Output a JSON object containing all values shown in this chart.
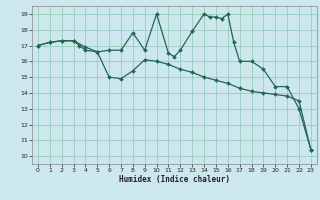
{
  "xlabel": "Humidex (Indice chaleur)",
  "bg_color": "#cce8ee",
  "grid_color": "#99ccbb",
  "line_color": "#226655",
  "xlim": [
    -0.5,
    23.5
  ],
  "ylim": [
    9.5,
    19.5
  ],
  "xticks": [
    0,
    1,
    2,
    3,
    4,
    5,
    6,
    7,
    8,
    9,
    10,
    11,
    12,
    13,
    14,
    15,
    16,
    17,
    18,
    19,
    20,
    21,
    22,
    23
  ],
  "yticks": [
    10,
    11,
    12,
    13,
    14,
    15,
    16,
    17,
    18,
    19
  ],
  "curve1_x": [
    0,
    1,
    2,
    3,
    3.5,
    4,
    5,
    6,
    7,
    8,
    9,
    10,
    11,
    11.5,
    12,
    13,
    14,
    14.5,
    15,
    15.5,
    16,
    16.5,
    17,
    18,
    19,
    20,
    21,
    22,
    23
  ],
  "curve1_y": [
    17.0,
    17.2,
    17.3,
    17.3,
    17.0,
    16.7,
    16.6,
    16.7,
    16.7,
    17.8,
    16.7,
    19.0,
    16.5,
    16.3,
    16.7,
    17.9,
    19.0,
    18.8,
    18.8,
    18.7,
    19.0,
    17.2,
    16.0,
    16.0,
    15.5,
    14.4,
    14.4,
    13.0,
    10.4
  ],
  "curve2_x": [
    0,
    1,
    2,
    3,
    4,
    5,
    6,
    7,
    8,
    9,
    10,
    11,
    12,
    13,
    14,
    15,
    16,
    17,
    18,
    19,
    20,
    21,
    22,
    23
  ],
  "curve2_y": [
    17.0,
    17.2,
    17.3,
    17.3,
    16.9,
    16.6,
    15.0,
    14.9,
    15.4,
    16.1,
    16.0,
    15.8,
    15.5,
    15.3,
    15.0,
    14.8,
    14.6,
    14.3,
    14.1,
    14.0,
    13.9,
    13.8,
    13.5,
    10.4
  ]
}
